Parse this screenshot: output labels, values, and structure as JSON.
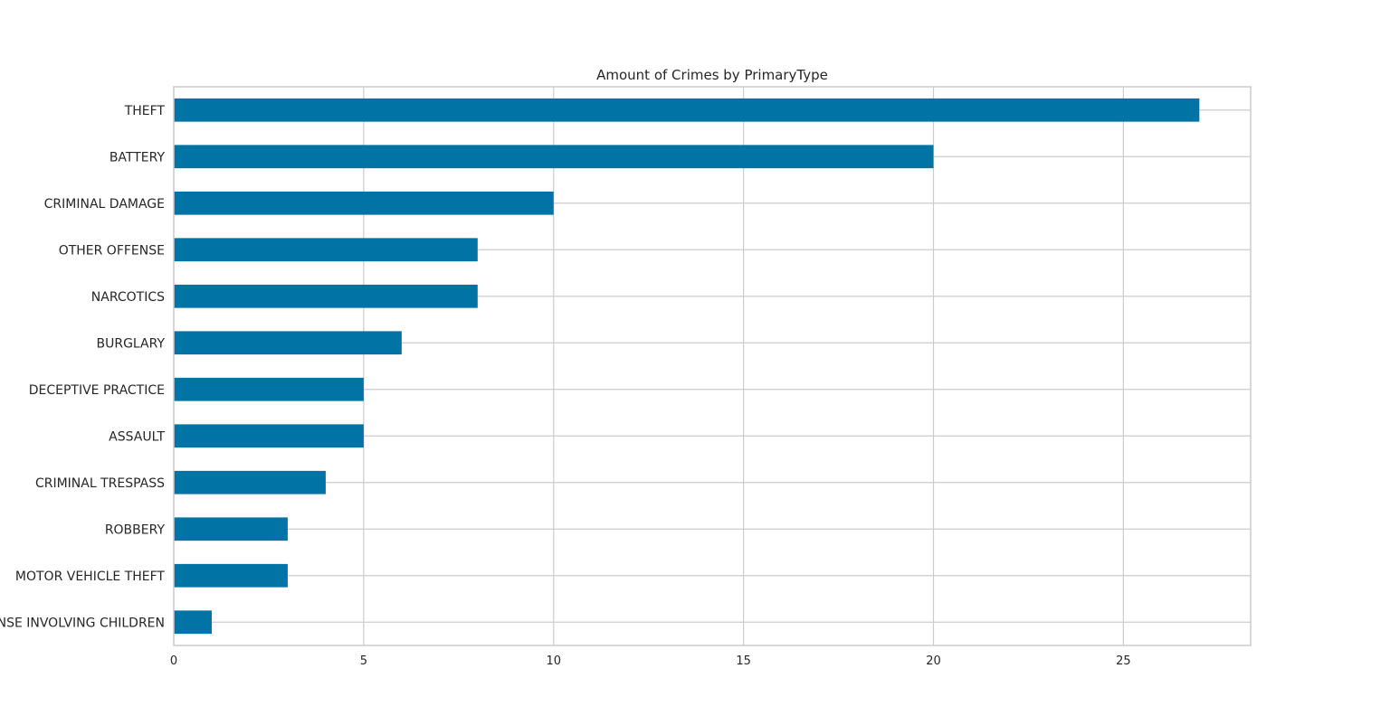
{
  "chart_data": {
    "type": "bar",
    "orientation": "horizontal",
    "title": "Amount of Crimes by PrimaryType",
    "xlabel": "",
    "ylabel": "",
    "categories": [
      "THEFT",
      "BATTERY",
      "CRIMINAL DAMAGE",
      "OTHER OFFENSE",
      "NARCOTICS",
      "BURGLARY",
      "DECEPTIVE PRACTICE",
      "ASSAULT",
      "CRIMINAL TRESPASS",
      "ROBBERY",
      "MOTOR VEHICLE THEFT",
      "OFFENSE INVOLVING CHILDREN"
    ],
    "values": [
      27,
      20,
      10,
      8,
      8,
      6,
      5,
      5,
      4,
      3,
      3,
      1
    ],
    "xlim": [
      0,
      28.35
    ],
    "xticks": [
      0,
      5,
      10,
      15,
      20,
      25
    ],
    "xtick_labels": [
      "0",
      "5",
      "10",
      "15",
      "20",
      "25"
    ],
    "grid": true,
    "bar_color": "#0173a4",
    "grid_color": "#cccccc",
    "legend": "none"
  }
}
